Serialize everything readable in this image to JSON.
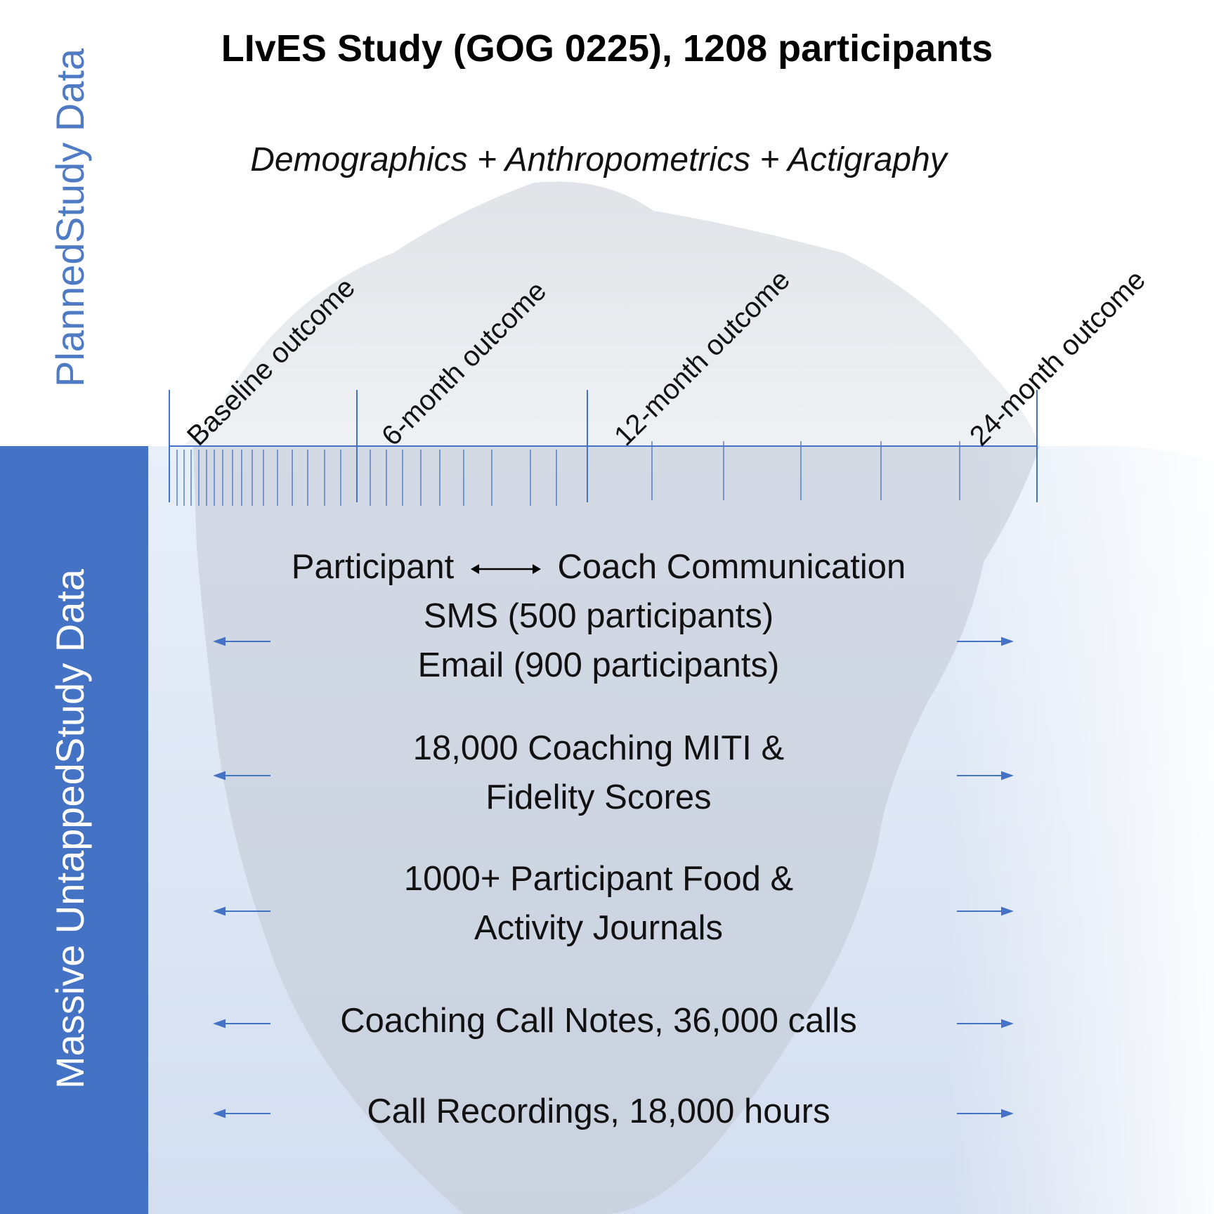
{
  "title": "LIvES Study (GOG 0225), 1208 participants",
  "subtitle": "Demographics + Anthropometrics + Actigraphy",
  "planned_label": [
    "Planned",
    "Study Data"
  ],
  "untapped_label": [
    "Massive Untapped",
    "Study Data"
  ],
  "timepoints": [
    "Baseline outcome",
    "6-month outcome",
    "12-month outcome",
    "24-month outcome"
  ],
  "communication": {
    "left": "Participant",
    "right": "Coach Communication",
    "sms": "SMS (500 participants)",
    "email": "Email (900 participants)"
  },
  "miti": [
    "18,000 Coaching MITI &",
    "Fidelity Scores"
  ],
  "journals": [
    "1000+ Participant Food &",
    "Activity Journals"
  ],
  "call_notes": "Coaching Call Notes, 36,000 calls",
  "recordings": "Call Recordings, 18,000 hours",
  "colors": {
    "accent_blue": "#4472c4",
    "planned_text": "#4f7ac4",
    "water": "#dde8f4",
    "iceberg": "#c9ced8"
  }
}
